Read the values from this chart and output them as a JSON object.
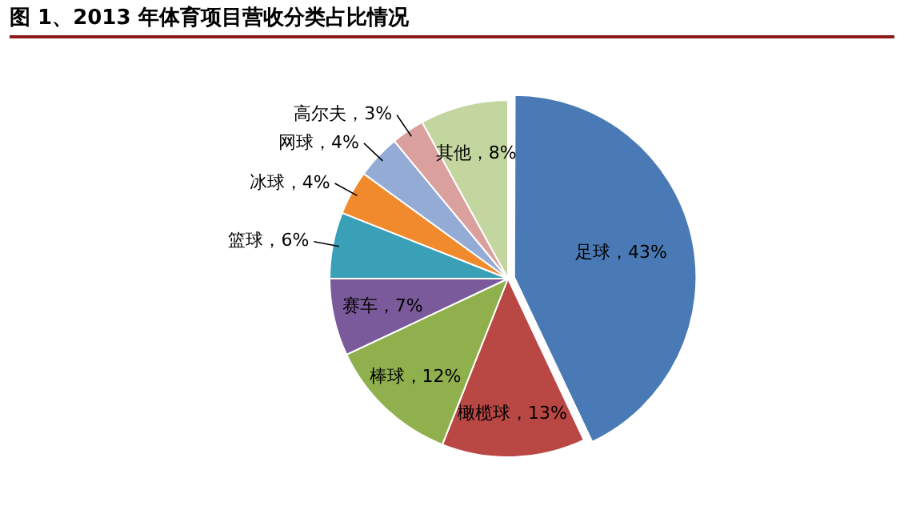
{
  "chart_data": {
    "type": "pie",
    "title": "图 1、2013 年体育项目营收分类占比情况",
    "categories": [
      "足球",
      "橄榄球",
      "棒球",
      "赛车",
      "篮球",
      "冰球",
      "网球",
      "高尔夫",
      "其他"
    ],
    "values": [
      43,
      13,
      12,
      7,
      6,
      4,
      4,
      3,
      8
    ],
    "value_labels": [
      "43%",
      "13%",
      "12%",
      "7%",
      "6%",
      "4%",
      "4%",
      "3%",
      "8%"
    ],
    "colors": [
      "#4a7ab5",
      "#b94744",
      "#8fb04d",
      "#7a5a9a",
      "#3aa0b8",
      "#f08a2c",
      "#94abd6",
      "#d9a09e",
      "#c4d6a0"
    ],
    "legend": false
  }
}
